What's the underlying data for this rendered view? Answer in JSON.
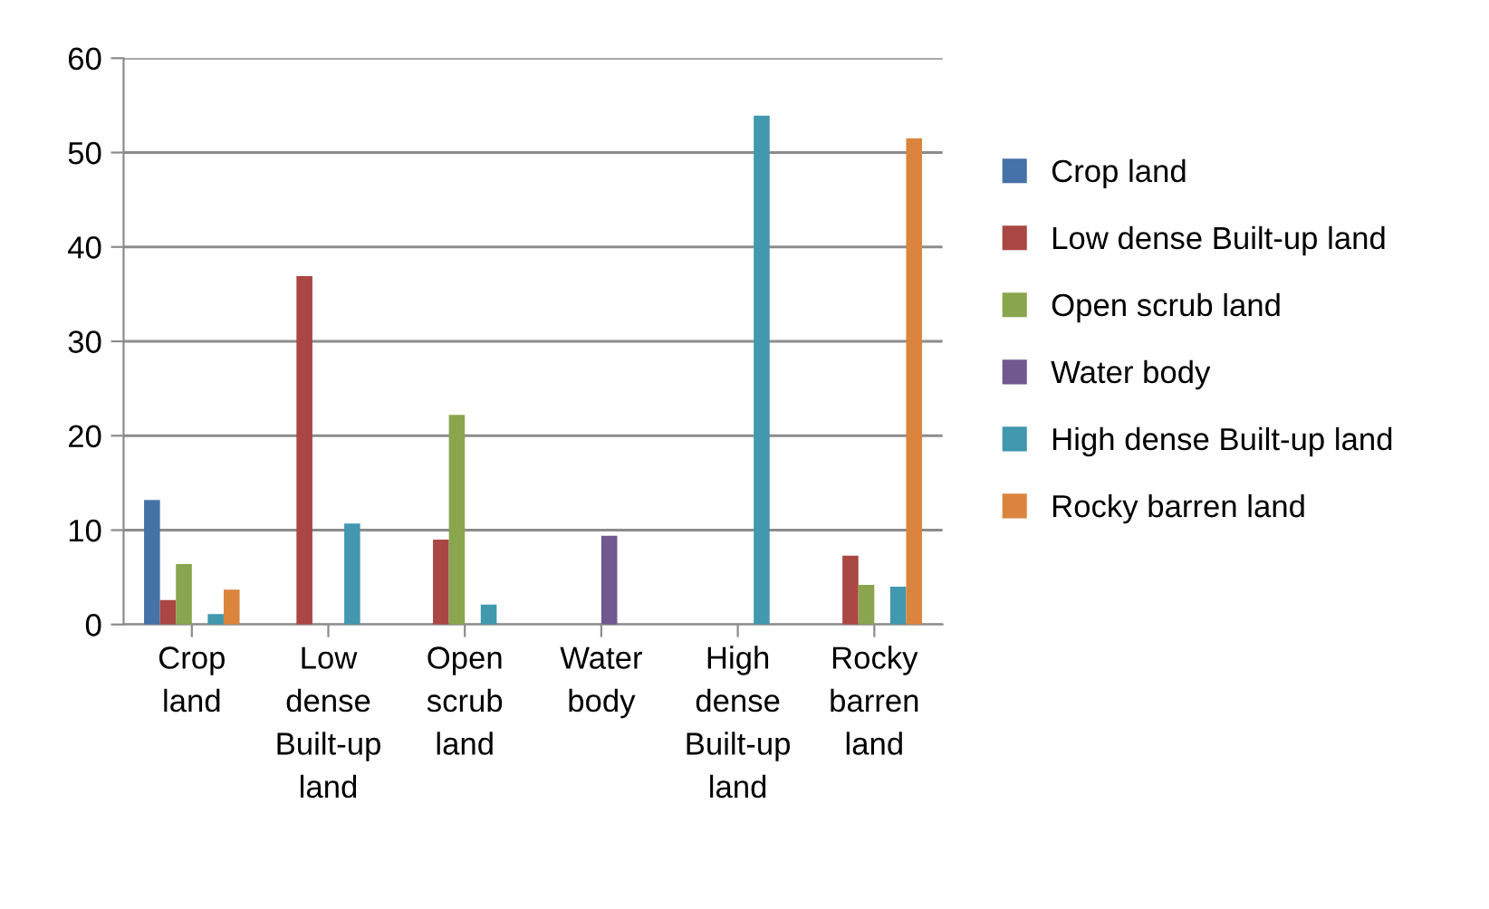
{
  "chart_data": {
    "type": "bar",
    "categories": [
      "Crop land",
      "Low dense Built-up land",
      "Open scrub land",
      "Water body",
      "High dense Built-up land",
      "Rocky barren land"
    ],
    "series": [
      {
        "name": "Crop land",
        "color": "#4572a7",
        "values": [
          13.2,
          0,
          0,
          0,
          0,
          0
        ]
      },
      {
        "name": "Low dense Built-up land",
        "color": "#aa4643",
        "values": [
          2.6,
          36.9,
          9.0,
          0,
          0,
          7.3
        ]
      },
      {
        "name": "Open scrub land",
        "color": "#89a54e",
        "values": [
          6.4,
          0,
          22.2,
          0,
          0,
          4.2
        ]
      },
      {
        "name": "Water body",
        "color": "#71588f",
        "values": [
          0,
          0,
          0,
          9.4,
          0,
          0
        ]
      },
      {
        "name": "High dense Built-up land",
        "color": "#4198af",
        "values": [
          1.1,
          10.7,
          2.1,
          0,
          53.9,
          4.0
        ]
      },
      {
        "name": "Rocky barren land",
        "color": "#db843d",
        "values": [
          3.7,
          0,
          0,
          0,
          0,
          51.5
        ]
      }
    ],
    "ylim": [
      0,
      60
    ],
    "yticks": [
      0,
      10,
      20,
      30,
      40,
      50,
      60
    ],
    "grid": "y",
    "legend": "right"
  }
}
